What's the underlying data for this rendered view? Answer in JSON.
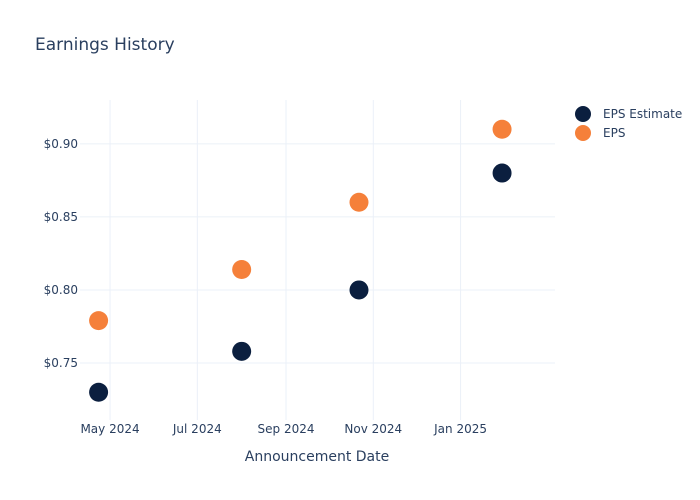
{
  "chart_data": {
    "type": "scatter",
    "title": "Earnings History",
    "xlabel": "Announcement Date",
    "ylabel": "",
    "x_ticks": [
      "May 2024",
      "Jul 2024",
      "Sep 2024",
      "Nov 2024",
      "Jan 2025"
    ],
    "x_tick_dates": [
      "2024-05-01",
      "2024-07-01",
      "2024-09-01",
      "2024-11-01",
      "2025-01-01"
    ],
    "xlim": [
      "2024-04-10",
      "2025-03-08"
    ],
    "y_ticks": [
      0.75,
      0.8,
      0.85,
      0.9
    ],
    "y_tick_labels": [
      "$0.75",
      "$0.80",
      "$0.85",
      "$0.90"
    ],
    "ylim": [
      0.711,
      0.93
    ],
    "grid": true,
    "legend_position": "top-right",
    "x": [
      "2024-04-23",
      "2024-08-01",
      "2024-10-22",
      "2025-01-30"
    ],
    "series": [
      {
        "name": "EPS Estimate",
        "color": "#0b1f3f",
        "values": [
          0.73,
          0.758,
          0.8,
          0.88
        ]
      },
      {
        "name": "EPS",
        "color": "#f5803a",
        "values": [
          0.779,
          0.814,
          0.86,
          0.91
        ]
      }
    ]
  }
}
